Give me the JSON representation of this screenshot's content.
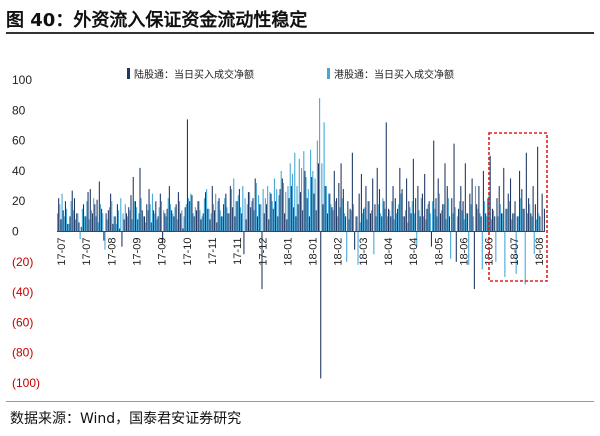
{
  "figure": {
    "title": "图 40：外资流入保证资金流动性稳定",
    "source": "数据来源：Wind，国泰君安证券研究"
  },
  "colors": {
    "series1": "#1f3864",
    "series2": "#45a6d8",
    "negative_tick": "#c00000",
    "highlight_box": "#e02020"
  },
  "chart_data": {
    "type": "bar",
    "xlabel": "",
    "ylabel": "",
    "ylim": [
      -100,
      100
    ],
    "yticks": [
      100,
      80,
      60,
      40,
      20,
      0,
      -20,
      -40,
      -60,
      -80,
      -100
    ],
    "ytick_labels": [
      "100",
      "80",
      "60",
      "40",
      "20",
      "0",
      "(20)",
      "(40)",
      "(60)",
      "(80)",
      "(100)"
    ],
    "grid": false,
    "legend_position": "top",
    "x_tick_labels": [
      "17-07",
      "17-07",
      "17-08",
      "17-09",
      "17-09",
      "17-10",
      "17-11",
      "17-11",
      "17-12",
      "18-01",
      "18-01",
      "18-02",
      "18-03",
      "18-04",
      "18-04",
      "18-05",
      "18-06",
      "18-06",
      "18-07",
      "18-08"
    ],
    "series": [
      {
        "name": "陆股通：当日买入成交净额",
        "values": [
          22,
          8,
          14,
          20,
          5,
          10,
          27,
          22,
          12,
          6,
          3,
          18,
          10,
          26,
          28,
          12,
          18,
          21,
          33,
          15,
          -6,
          12,
          14,
          25,
          5,
          10,
          18,
          2,
          -10,
          8,
          12,
          16,
          24,
          36,
          20,
          8,
          42,
          14,
          10,
          18,
          28,
          6,
          14,
          20,
          10,
          25,
          -8,
          12,
          15,
          30,
          14,
          10,
          18,
          26,
          12,
          2,
          16,
          74,
          20,
          24,
          10,
          14,
          20,
          8,
          12,
          26,
          15,
          8,
          30,
          14,
          6,
          22,
          10,
          18,
          25,
          12,
          30,
          16,
          10,
          20,
          28,
          12,
          -15,
          8,
          26,
          16,
          22,
          35,
          10,
          18,
          -38,
          12,
          18,
          8,
          25,
          15,
          20,
          10,
          28,
          35,
          12,
          8,
          22,
          30,
          16,
          10,
          18,
          26,
          14,
          40,
          22,
          10,
          36,
          25,
          14,
          45,
          -97,
          18,
          30,
          12,
          25,
          16,
          40,
          22,
          32,
          45,
          28,
          10,
          20,
          15,
          52,
          -12,
          10,
          25,
          38,
          15,
          30,
          20,
          12,
          35,
          18,
          42,
          28,
          10,
          20,
          72,
          15,
          10,
          30,
          22,
          15,
          42,
          28,
          10,
          35,
          20,
          12,
          48,
          22,
          30,
          10,
          25,
          38,
          15,
          20,
          -10,
          60,
          22,
          35,
          12,
          18,
          45,
          30,
          10,
          22,
          58,
          -20,
          15,
          30,
          20,
          45,
          12,
          25,
          35,
          -38,
          18,
          30,
          10,
          40,
          12,
          22,
          50,
          15,
          10,
          22,
          30,
          12,
          42,
          15,
          25,
          35,
          12,
          20,
          10,
          40,
          28,
          15,
          52,
          22,
          12,
          30,
          18,
          56,
          10,
          25,
          15
        ]
      },
      {
        "name": "港股通：当日买入成交净额",
        "values": [
          12,
          18,
          25,
          10,
          15,
          5,
          20,
          14,
          8,
          12,
          -5,
          15,
          10,
          20,
          8,
          14,
          22,
          10,
          6,
          18,
          12,
          -12,
          8,
          16,
          20,
          10,
          5,
          14,
          22,
          12,
          18,
          10,
          14,
          8,
          20,
          16,
          12,
          22,
          10,
          6,
          14,
          18,
          25,
          12,
          8,
          16,
          20,
          14,
          10,
          22,
          18,
          12,
          16,
          8,
          20,
          14,
          10,
          18,
          22,
          25,
          12,
          16,
          20,
          14,
          10,
          22,
          28,
          15,
          12,
          18,
          25,
          20,
          14,
          10,
          22,
          16,
          12,
          28,
          35,
          20,
          24,
          16,
          30,
          22,
          18,
          26,
          20,
          14,
          32,
          24,
          18,
          28,
          22,
          30,
          26,
          20,
          35,
          28,
          24,
          40,
          32,
          26,
          30,
          45,
          38,
          52,
          30,
          48,
          42,
          53,
          36,
          28,
          54,
          40,
          35,
          60,
          88,
          45,
          72,
          30,
          25,
          18,
          14,
          20,
          10,
          16,
          22,
          12,
          -20,
          8,
          14,
          18,
          10,
          -22,
          6,
          12,
          16,
          8,
          20,
          14,
          -15,
          10,
          18,
          12,
          22,
          15,
          10,
          14,
          20,
          8,
          12,
          18,
          25,
          10,
          14,
          6,
          16,
          20,
          12,
          -10,
          14,
          22,
          10,
          8,
          18,
          12,
          20,
          15,
          10,
          25,
          14,
          18,
          8,
          22,
          -18,
          12,
          16,
          10,
          20,
          14,
          8,
          12,
          -22,
          18,
          10,
          30,
          15,
          12,
          -25,
          20,
          10,
          25,
          8,
          14,
          -20,
          10,
          18,
          12,
          -30,
          15,
          20,
          8,
          12,
          -28,
          10,
          22,
          15,
          -35,
          12,
          18,
          10,
          -15,
          8,
          12
        ]
      }
    ]
  }
}
